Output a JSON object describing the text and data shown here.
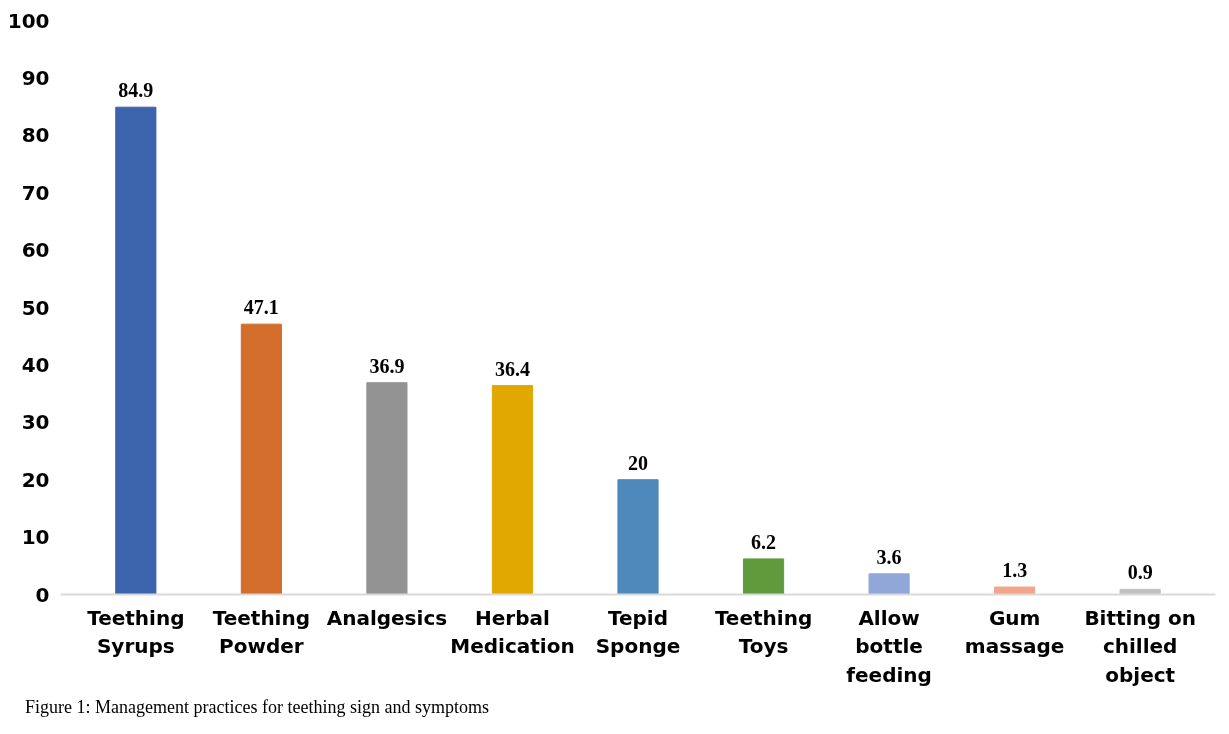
{
  "chart_data": {
    "type": "bar",
    "categories": [
      "Teething\nSyrups",
      "Teething\nPowder",
      "Analgesics",
      "Herbal\nMedication",
      "Tepid\nSponge",
      "Teething\nToys",
      "Allow\nbottle\nfeeding",
      "Gum\nmassage",
      "Bitting on\nchilled\nobject"
    ],
    "values": [
      84.9,
      47.1,
      36.9,
      36.4,
      20,
      6.2,
      3.6,
      1.3,
      0.9
    ],
    "colors": [
      "#3c64ac",
      "#d36d2b",
      "#939393",
      "#e0a800",
      "#4f88bb",
      "#5f9a3c",
      "#91a7d8",
      "#f2a58a",
      "#c1c1c1"
    ],
    "ylim": [
      0,
      100
    ],
    "yticks": [
      0,
      10,
      20,
      30,
      40,
      50,
      60,
      70,
      80,
      90,
      100
    ],
    "data_labels": true,
    "grid": false,
    "annotations": [
      "Figure 1: Management practices for teething sign and symptoms"
    ]
  }
}
